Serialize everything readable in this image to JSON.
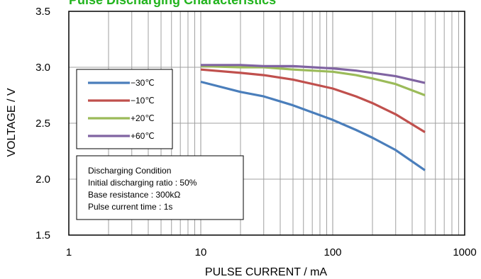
{
  "colors": {
    "title": "#22b41e",
    "grid": "#a0a0a0",
    "frame": "#000000"
  },
  "chart_data": {
    "type": "line",
    "title": "Pulse Discharging Characteristics",
    "xlabel": "PULSE CURRENT / mA",
    "ylabel": "VOLTAGE / V",
    "x_scale": "log",
    "xlim": [
      1,
      1000
    ],
    "ylim": [
      1.5,
      3.5
    ],
    "x_ticks": [
      "1",
      "10",
      "100",
      "1000"
    ],
    "y_ticks": [
      "1.5",
      "2.0",
      "2.5",
      "3.0",
      "3.5"
    ],
    "grid": true,
    "legend_position": "upper-left",
    "series": [
      {
        "name": "−30℃",
        "color": "#4a7ebb",
        "x": [
          10,
          20,
          30,
          50,
          100,
          150,
          200,
          300,
          500
        ],
        "y": [
          2.87,
          2.78,
          2.74,
          2.66,
          2.53,
          2.44,
          2.37,
          2.26,
          2.08
        ]
      },
      {
        "name": "−10℃",
        "color": "#c0504d",
        "x": [
          10,
          20,
          30,
          50,
          100,
          150,
          200,
          300,
          500
        ],
        "y": [
          2.98,
          2.95,
          2.93,
          2.89,
          2.81,
          2.74,
          2.68,
          2.58,
          2.42
        ]
      },
      {
        "name": "+20℃",
        "color": "#9bbb59",
        "x": [
          10,
          20,
          30,
          50,
          100,
          150,
          200,
          300,
          500
        ],
        "y": [
          3.01,
          3.0,
          3.0,
          2.98,
          2.96,
          2.93,
          2.9,
          2.85,
          2.75
        ]
      },
      {
        "name": "+60℃",
        "color": "#8064a2",
        "x": [
          10,
          20,
          30,
          50,
          100,
          150,
          200,
          300,
          500
        ],
        "y": [
          3.02,
          3.02,
          3.01,
          3.01,
          2.99,
          2.97,
          2.95,
          2.92,
          2.86
        ]
      }
    ],
    "annotation": {
      "lines": [
        "Discharging Condition",
        "Initial discharging ratio : 50%",
        "Base resistance : 300kΩ",
        "Pulse current time : 1s"
      ]
    }
  }
}
